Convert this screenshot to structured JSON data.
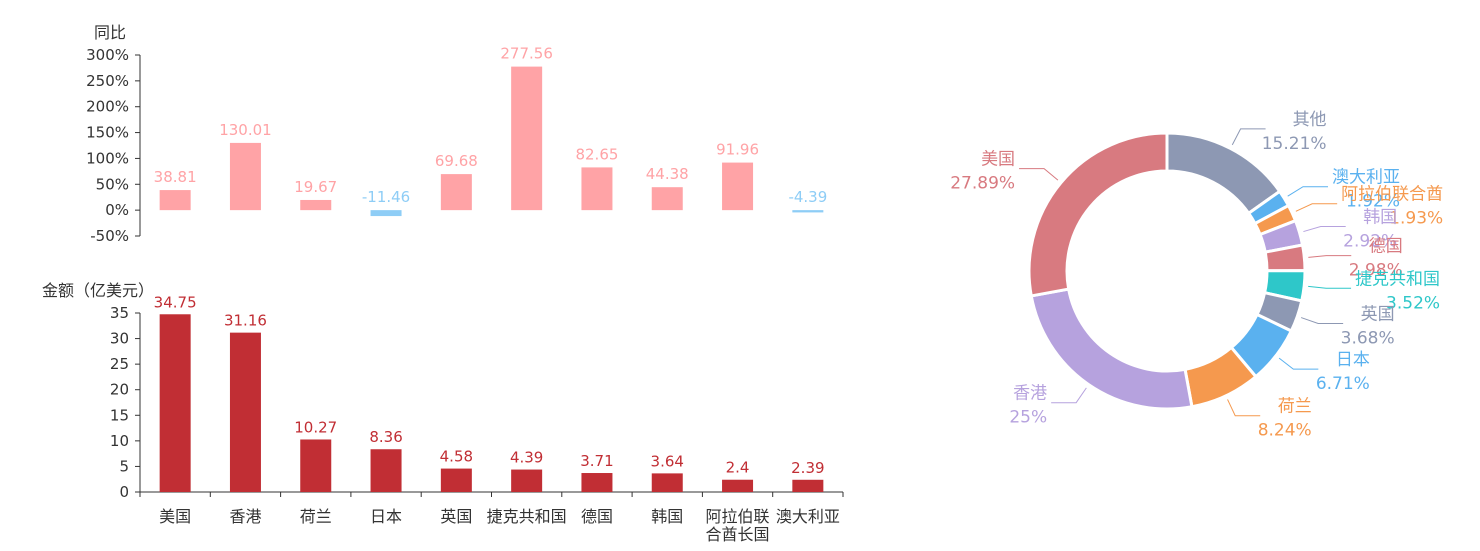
{
  "chart_data": [
    {
      "type": "bar",
      "ylabel": "同比",
      "ylim": [
        -50,
        300
      ],
      "yticks": [
        "300%",
        "250%",
        "200%",
        "150%",
        "100%",
        "50%",
        "0%",
        "-50%"
      ],
      "categories": [
        "美国",
        "香港",
        "荷兰",
        "日本",
        "英国",
        "捷克共和国",
        "德国",
        "韩国",
        "阿拉伯联合酋长国",
        "澳大利亚"
      ],
      "values": [
        38.81,
        130.01,
        19.67,
        -11.46,
        69.68,
        277.56,
        82.65,
        44.38,
        91.96,
        -4.39
      ],
      "colors": {
        "positive": "#ffa3a6",
        "negative": "#8ecdf6"
      }
    },
    {
      "type": "bar",
      "ylabel": "金额（亿美元）",
      "ylim": [
        0,
        35
      ],
      "yticks": [
        "35",
        "30",
        "25",
        "20",
        "15",
        "10",
        "5",
        "0"
      ],
      "categories": [
        "美国",
        "香港",
        "荷兰",
        "日本",
        "英国",
        "捷克共和国",
        "德国",
        "韩国",
        "阿拉伯联合酋长国",
        "澳大利亚"
      ],
      "category_lines": [
        [
          "美国"
        ],
        [
          "香港"
        ],
        [
          "荷兰"
        ],
        [
          "日本"
        ],
        [
          "英国"
        ],
        [
          "捷克共和国"
        ],
        [
          "德国"
        ],
        [
          "韩国"
        ],
        [
          "阿拉伯联",
          "合酋长国"
        ],
        [
          "澳大利亚"
        ]
      ],
      "values": [
        34.75,
        31.16,
        10.27,
        8.36,
        4.58,
        4.39,
        3.71,
        3.64,
        2.4,
        2.39
      ],
      "color": "#c12e34"
    },
    {
      "type": "pie",
      "donut": true,
      "slices": [
        {
          "name": "其他",
          "value": 15.21,
          "label": "15.21%",
          "color": "#8d98b3"
        },
        {
          "name": "澳大利亚",
          "value": 1.92,
          "label": "1.92%",
          "color": "#5ab1ef"
        },
        {
          "name": "阿拉伯联合酋",
          "value": 1.93,
          "label": "1.93%",
          "color": "#f5994e"
        },
        {
          "name": "韩国",
          "value": 2.92,
          "label": "2.92%",
          "color": "#b6a2de"
        },
        {
          "name": "德国",
          "value": 2.98,
          "label": "2.98%",
          "color": "#d87a80"
        },
        {
          "name": "捷克共和国",
          "value": 3.52,
          "label": "3.52%",
          "color": "#2ec7c9"
        },
        {
          "name": "英国",
          "value": 3.68,
          "label": "3.68%",
          "color": "#8d98b3"
        },
        {
          "name": "日本",
          "value": 6.71,
          "label": "6.71%",
          "color": "#5ab1ef"
        },
        {
          "name": "荷兰",
          "value": 8.24,
          "label": "8.24%",
          "color": "#f5994e"
        },
        {
          "name": "香港",
          "value": 25,
          "label": "25%",
          "color": "#b6a2de"
        },
        {
          "name": "美国",
          "value": 27.89,
          "label": "27.89%",
          "color": "#d87a80"
        }
      ]
    }
  ]
}
